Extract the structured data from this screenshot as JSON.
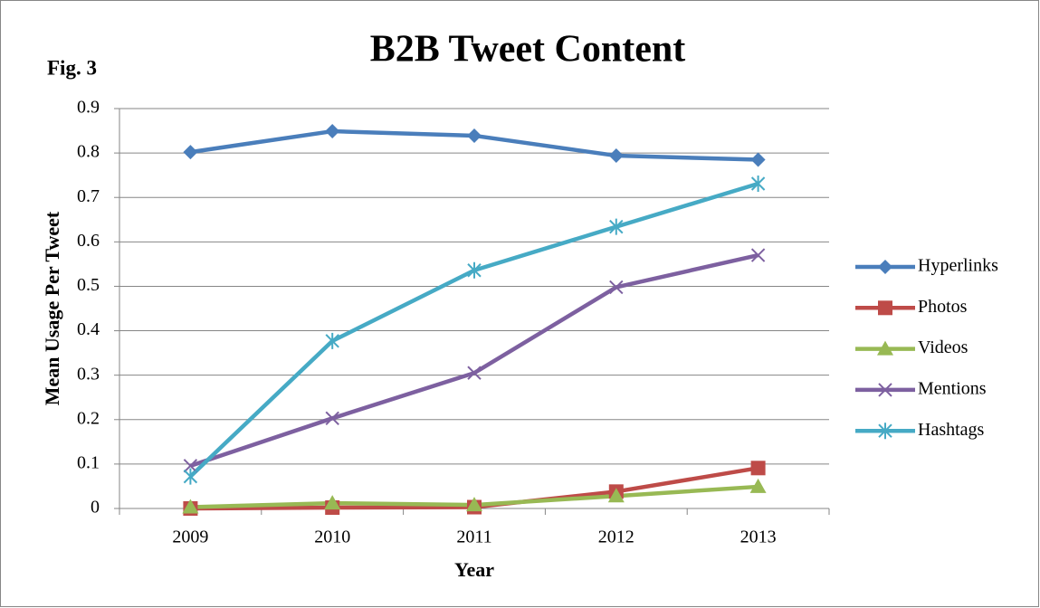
{
  "chart_data": {
    "type": "line",
    "title": "B2B Tweet Content",
    "annotation": "Fig. 3",
    "x_label": "Year",
    "y_label": "Mean Usage Per Tweet",
    "categories": [
      "2009",
      "2010",
      "2011",
      "2012",
      "2013"
    ],
    "series": [
      {
        "name": "Hyperlinks",
        "color": "#4a7ebb",
        "marker": "diamond",
        "values": [
          0.802,
          0.849,
          0.839,
          0.794,
          0.785
        ]
      },
      {
        "name": "Photos",
        "color": "#be4b48",
        "marker": "square",
        "values": [
          0,
          0.002,
          0.003,
          0.038,
          0.091
        ]
      },
      {
        "name": "Videos",
        "color": "#98b954",
        "marker": "triangle",
        "values": [
          0.003,
          0.012,
          0.008,
          0.028,
          0.049
        ]
      },
      {
        "name": "Mentions",
        "color": "#7d60a0",
        "marker": "x",
        "values": [
          0.096,
          0.203,
          0.305,
          0.498,
          0.57
        ]
      },
      {
        "name": "Hashtags",
        "color": "#46aac5",
        "marker": "star",
        "values": [
          0.072,
          0.377,
          0.536,
          0.634,
          0.731
        ]
      }
    ],
    "ylim": [
      0,
      0.9
    ],
    "yticks": [
      0,
      0.1,
      0.2,
      0.3,
      0.4,
      0.5,
      0.6,
      0.7,
      0.8,
      0.9
    ],
    "grid": true,
    "legend": "right"
  }
}
